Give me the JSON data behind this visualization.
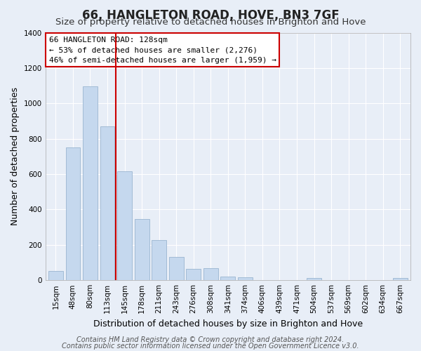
{
  "title": "66, HANGLETON ROAD, HOVE, BN3 7GF",
  "subtitle": "Size of property relative to detached houses in Brighton and Hove",
  "xlabel": "Distribution of detached houses by size in Brighton and Hove",
  "ylabel": "Number of detached properties",
  "bar_labels": [
    "15sqm",
    "48sqm",
    "80sqm",
    "113sqm",
    "145sqm",
    "178sqm",
    "211sqm",
    "243sqm",
    "276sqm",
    "308sqm",
    "341sqm",
    "374sqm",
    "406sqm",
    "439sqm",
    "471sqm",
    "504sqm",
    "537sqm",
    "569sqm",
    "602sqm",
    "634sqm",
    "667sqm"
  ],
  "bar_values": [
    52,
    750,
    1095,
    870,
    615,
    348,
    228,
    132,
    65,
    70,
    22,
    18,
    0,
    0,
    0,
    12,
    0,
    0,
    0,
    0,
    12
  ],
  "bar_color": "#c5d8ee",
  "bar_edge_color": "#9ab5d0",
  "vline_color": "#cc0000",
  "ylim": [
    0,
    1400
  ],
  "annotation_line1": "66 HANGLETON ROAD: 128sqm",
  "annotation_line2": "← 53% of detached houses are smaller (2,276)",
  "annotation_line3": "46% of semi-detached houses are larger (1,959) →",
  "footer_line1": "Contains HM Land Registry data © Crown copyright and database right 2024.",
  "footer_line2": "Contains public sector information licensed under the Open Government Licence v3.0.",
  "background_color": "#e8eef7",
  "plot_background_color": "#e8eef7",
  "title_fontsize": 12,
  "subtitle_fontsize": 9.5,
  "axis_label_fontsize": 9,
  "tick_fontsize": 7.5,
  "footer_fontsize": 7,
  "yticks": [
    0,
    200,
    400,
    600,
    800,
    1000,
    1200,
    1400
  ]
}
